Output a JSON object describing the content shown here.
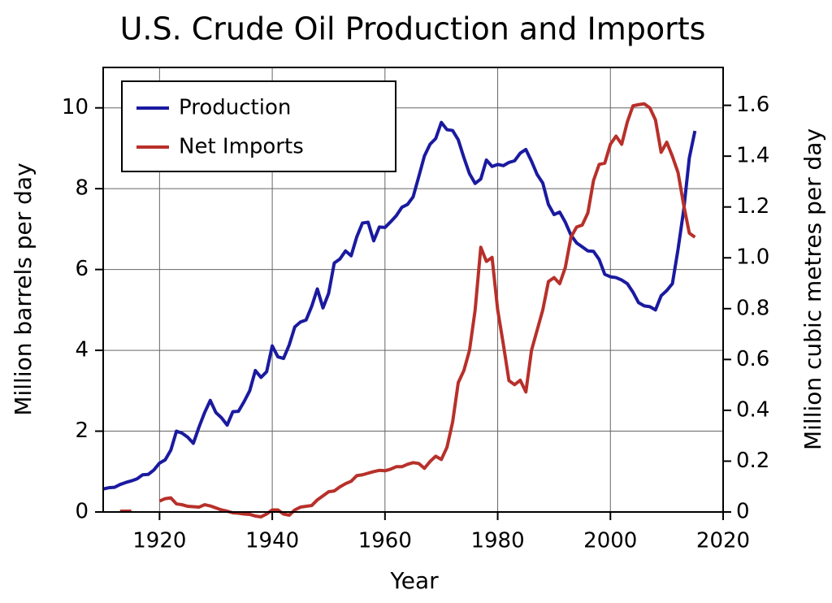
{
  "chart_data": {
    "type": "line",
    "title": "U.S. Crude Oil Production and Imports",
    "x_label": "Year",
    "y_label": "Million barrels per day",
    "y2_label": "Million cubic metres per day",
    "xlim": [
      1910,
      2020
    ],
    "xticks": [
      1920,
      1940,
      1960,
      1980,
      2000,
      2020
    ],
    "ylim": [
      0,
      11
    ],
    "yticks": [
      0,
      2,
      4,
      6,
      8,
      10
    ],
    "y2lim": [
      0,
      1.749
    ],
    "y2ticks": [
      0,
      {
        "value": 0.2,
        "label": "0.2"
      },
      {
        "value": 0.4,
        "label": "0.4"
      },
      {
        "value": 0.6,
        "label": "0.6"
      },
      {
        "value": 0.8,
        "label": "0.8"
      },
      {
        "value": 1,
        "label": "1.0"
      },
      {
        "value": 1.2,
        "label": "1.2"
      },
      {
        "value": 1.4,
        "label": "1.4"
      },
      {
        "value": 1.6,
        "label": "1.6"
      }
    ],
    "grid": true,
    "legend": "upper left",
    "x": [
      1910,
      1911,
      1912,
      1913,
      1914,
      1915,
      1916,
      1917,
      1918,
      1919,
      1920,
      1921,
      1922,
      1923,
      1924,
      1925,
      1926,
      1927,
      1928,
      1929,
      1930,
      1931,
      1932,
      1933,
      1934,
      1935,
      1936,
      1937,
      1938,
      1939,
      1940,
      1941,
      1942,
      1943,
      1944,
      1945,
      1946,
      1947,
      1948,
      1949,
      1950,
      1951,
      1952,
      1953,
      1954,
      1955,
      1956,
      1957,
      1958,
      1959,
      1960,
      1961,
      1962,
      1963,
      1964,
      1965,
      1966,
      1967,
      1968,
      1969,
      1970,
      1971,
      1972,
      1973,
      1974,
      1975,
      1976,
      1977,
      1978,
      1979,
      1980,
      1981,
      1982,
      1983,
      1984,
      1985,
      1986,
      1987,
      1988,
      1989,
      1990,
      1991,
      1992,
      1993,
      1994,
      1995,
      1996,
      1997,
      1998,
      1999,
      2000,
      2001,
      2002,
      2003,
      2004,
      2005,
      2006,
      2007,
      2008,
      2009,
      2010,
      2011,
      2012,
      2013,
      2014,
      2015
    ],
    "series": [
      {
        "name": "Production",
        "color": "#1a1aa0",
        "values": [
          0.57,
          0.6,
          0.61,
          0.68,
          0.73,
          0.77,
          0.82,
          0.92,
          0.93,
          1.04,
          1.21,
          1.29,
          1.53,
          2.0,
          1.95,
          1.85,
          1.7,
          2.1,
          2.46,
          2.76,
          2.46,
          2.33,
          2.15,
          2.48,
          2.49,
          2.73,
          3.0,
          3.5,
          3.33,
          3.47,
          4.11,
          3.84,
          3.8,
          4.13,
          4.58,
          4.7,
          4.75,
          5.09,
          5.52,
          5.05,
          5.41,
          6.16,
          6.26,
          6.46,
          6.34,
          6.81,
          7.15,
          7.17,
          6.71,
          7.05,
          7.04,
          7.18,
          7.33,
          7.54,
          7.61,
          7.8,
          8.3,
          8.81,
          9.1,
          9.24,
          9.64,
          9.46,
          9.44,
          9.21,
          8.77,
          8.37,
          8.13,
          8.24,
          8.71,
          8.55,
          8.6,
          8.57,
          8.65,
          8.69,
          8.88,
          8.97,
          8.68,
          8.35,
          8.14,
          7.61,
          7.36,
          7.42,
          7.17,
          6.85,
          6.66,
          6.56,
          6.46,
          6.45,
          6.25,
          5.88,
          5.82,
          5.8,
          5.74,
          5.65,
          5.44,
          5.18,
          5.1,
          5.08,
          5.0,
          5.35,
          5.48,
          5.65,
          6.5,
          7.47,
          8.76,
          9.43
        ]
      },
      {
        "name": "Net Imports",
        "color": "#b8302a",
        "values": [
          null,
          null,
          null,
          0.02,
          0.02,
          0.02,
          null,
          null,
          null,
          null,
          0.27,
          0.33,
          0.35,
          0.2,
          0.18,
          0.14,
          0.13,
          0.12,
          0.18,
          0.15,
          0.1,
          0.05,
          0.02,
          -0.02,
          -0.03,
          -0.05,
          -0.06,
          -0.1,
          -0.12,
          -0.05,
          0.05,
          0.05,
          -0.05,
          -0.08,
          0.05,
          0.12,
          0.14,
          0.16,
          0.3,
          0.4,
          0.5,
          0.52,
          0.62,
          0.7,
          0.76,
          0.9,
          0.92,
          0.96,
          1.0,
          1.03,
          1.02,
          1.06,
          1.12,
          1.12,
          1.18,
          1.22,
          1.2,
          1.08,
          1.25,
          1.38,
          1.3,
          1.6,
          2.22,
          3.2,
          3.5,
          4.0,
          5.0,
          6.55,
          6.2,
          6.3,
          5.0,
          4.15,
          3.25,
          3.15,
          3.26,
          2.97,
          4.0,
          4.5,
          5.0,
          5.7,
          5.8,
          5.65,
          6.05,
          6.8,
          7.05,
          7.1,
          7.4,
          8.2,
          8.6,
          8.63,
          9.1,
          9.3,
          9.1,
          9.65,
          10.05,
          10.08,
          10.1,
          10.0,
          9.7,
          8.9,
          9.15,
          8.8,
          8.4,
          7.6,
          6.9,
          6.8
        ]
      }
    ]
  }
}
